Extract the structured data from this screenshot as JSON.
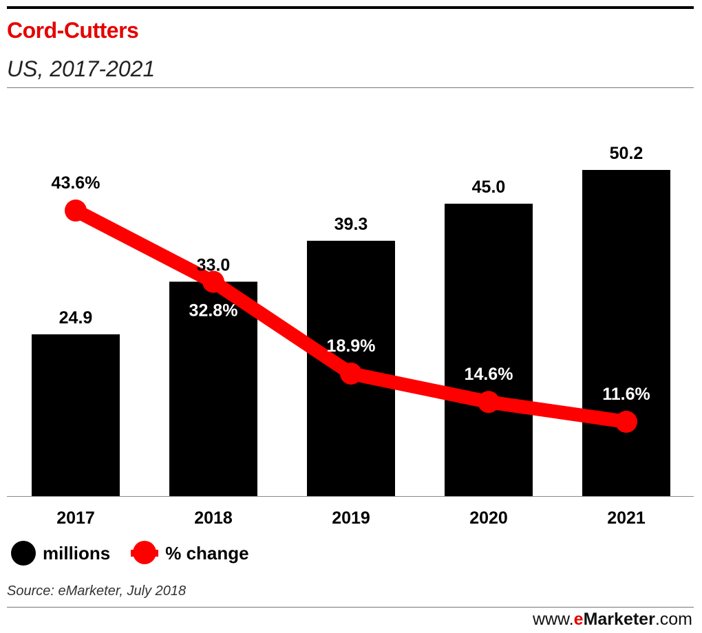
{
  "header": {
    "title": "Cord-Cutters",
    "subtitle": "US, 2017-2021"
  },
  "chart_data": {
    "type": "bar",
    "categories": [
      "2017",
      "2018",
      "2019",
      "2020",
      "2021"
    ],
    "series": [
      {
        "name": "millions",
        "type": "bar",
        "values": [
          24.9,
          33.0,
          39.3,
          45.0,
          50.2
        ],
        "labels": [
          "24.9",
          "33.0",
          "39.3",
          "45.0",
          "50.2"
        ],
        "color": "#000000"
      },
      {
        "name": "% change",
        "type": "line",
        "values": [
          43.6,
          32.8,
          18.9,
          14.6,
          11.6
        ],
        "labels": [
          "43.6%",
          "32.8%",
          "18.9%",
          "14.6%",
          "11.6%"
        ],
        "color": "#ff0000"
      }
    ],
    "legend_position": "bottom-left",
    "grid": false
  },
  "legend": {
    "millions": "millions",
    "pct_change": "% change"
  },
  "footer": {
    "source": "Source: eMarketer, July 2018",
    "brand_prefix": "www.",
    "brand_e": "e",
    "brand_name": "Marketer",
    "brand_suffix": ".com"
  },
  "colors": {
    "title": "#e60000",
    "bar": "#000000",
    "line": "#ff0000"
  }
}
